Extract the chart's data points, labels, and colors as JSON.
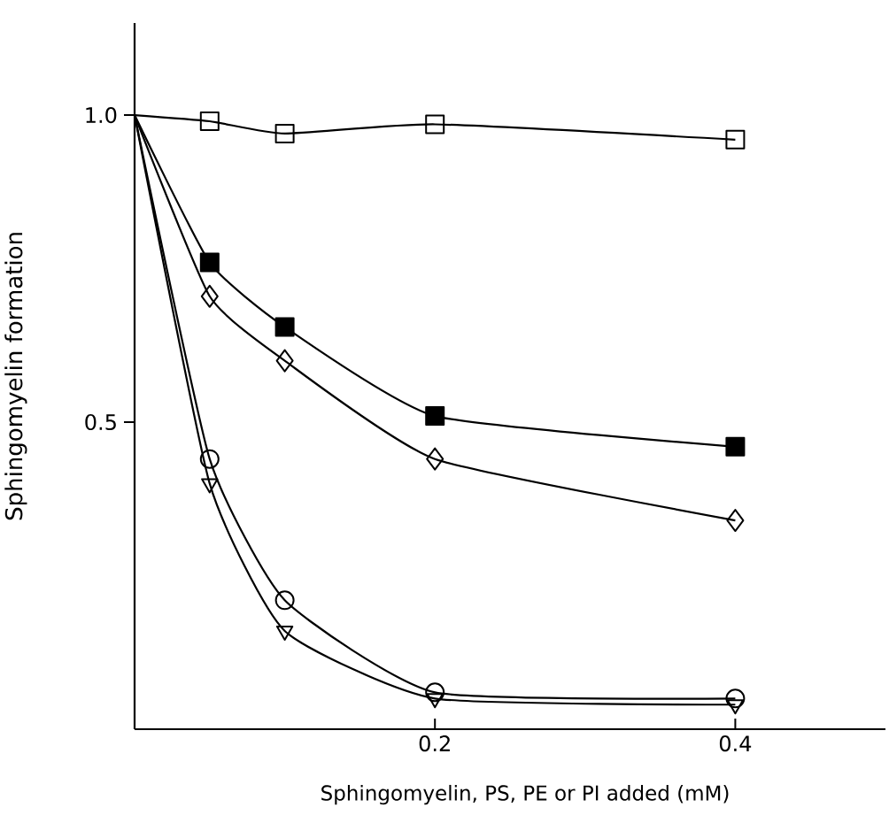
{
  "chart_data": {
    "type": "line",
    "xlabel": "Sphingomyelin, PS, PE or PI added (mM)",
    "ylabel": "Sphingomyelin formation",
    "xlim": [
      0,
      0.5
    ],
    "ylim": [
      0,
      1.15
    ],
    "xticks": [
      0.2,
      0.4
    ],
    "yticks": [
      {
        "value": 0.5,
        "label": "0.5"
      },
      {
        "value": 1.0,
        "label": "1.0"
      }
    ],
    "grid": false,
    "line_style": "solid",
    "series": [
      {
        "color": "#000000",
        "marker": "square",
        "x": [
          0,
          0.05,
          0.1,
          0.2,
          0.4
        ],
        "values": [
          1.0,
          0.99,
          0.97,
          0.985,
          0.96
        ]
      },
      {
        "color": "#000000",
        "marker": "square",
        "x": [
          0,
          0.05,
          0.1,
          0.2,
          0.4
        ],
        "values": [
          1.0,
          0.76,
          0.655,
          0.51,
          0.46
        ]
      },
      {
        "color": "#000000",
        "marker": "diamond",
        "x": [
          0,
          0.05,
          0.1,
          0.2,
          0.4
        ],
        "values": [
          1.0,
          0.705,
          0.6,
          0.44,
          0.34
        ]
      },
      {
        "color": "#000000",
        "marker": "circle",
        "x": [
          0,
          0.05,
          0.1,
          0.2,
          0.4
        ],
        "values": [
          1.0,
          0.44,
          0.21,
          0.06,
          0.05
        ]
      },
      {
        "color": "#000000",
        "marker": "triangle",
        "x": [
          0,
          0.05,
          0.1,
          0.2,
          0.4
        ],
        "values": [
          1.0,
          0.4,
          0.16,
          0.05,
          0.04
        ]
      }
    ]
  }
}
